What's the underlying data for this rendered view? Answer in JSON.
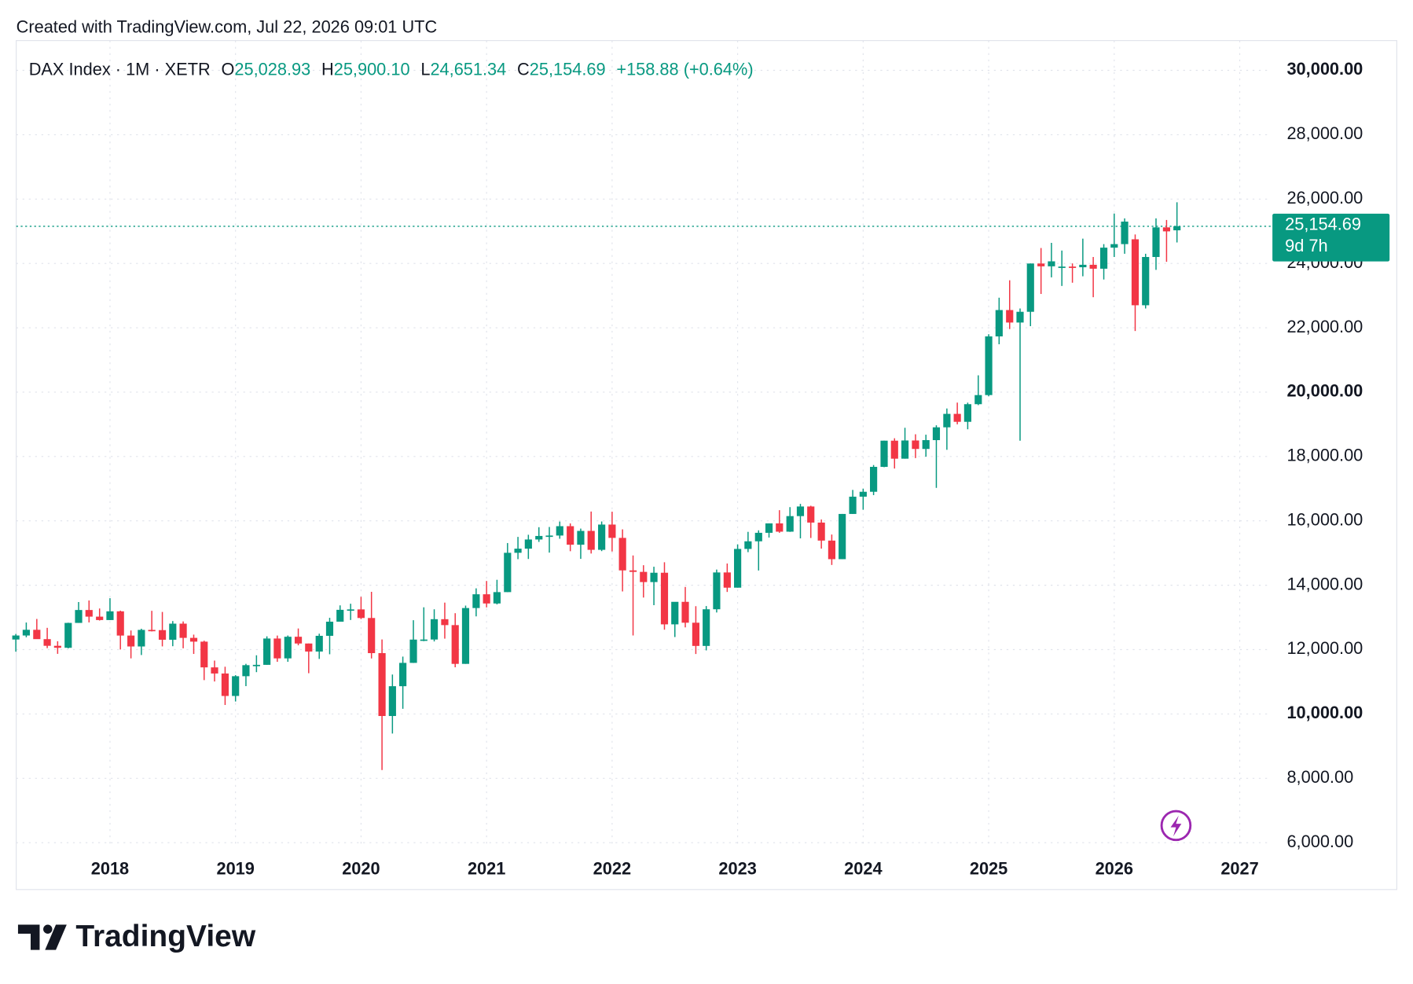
{
  "caption": "Created with TradingView.com, Jul 22, 2026 09:01 UTC",
  "brand": "TradingView",
  "chart_data": {
    "type": "candlestick",
    "legend": {
      "symbol": "DAX Index · 1M · XETR",
      "items": [
        {
          "label": "O",
          "value": "25,028.93"
        },
        {
          "label": "H",
          "value": "25,900.10"
        },
        {
          "label": "L",
          "value": "24,651.34"
        },
        {
          "label": "C",
          "value": "25,154.69"
        }
      ],
      "change": "+158.88 (+0.64%)"
    },
    "price_label": "25,154.69",
    "countdown": "9d 7h",
    "up_color": "#089981",
    "down_color": "#f23645",
    "grid": true,
    "xlim": [
      2017.253,
      2027.246
    ],
    "xticks": [
      2018,
      2019,
      2020,
      2021,
      2022,
      2023,
      2024,
      2025,
      2026,
      2027
    ],
    "ylim": [
      5860,
      30925
    ],
    "yticks": [
      {
        "value": 6000,
        "label": "6,000.00"
      },
      {
        "value": 8000,
        "label": "8,000.00"
      },
      {
        "value": 10000,
        "label": "10,000.00"
      },
      {
        "value": 12000,
        "label": "12,000.00"
      },
      {
        "value": 14000,
        "label": "14,000.00"
      },
      {
        "value": 16000,
        "label": "16,000.00"
      },
      {
        "value": 18000,
        "label": "18,000.00"
      },
      {
        "value": 20000,
        "label": "20,000.00"
      },
      {
        "value": 22000,
        "label": "22,000.00"
      },
      {
        "value": 24000,
        "label": "24,000.00"
      },
      {
        "value": 26000,
        "label": "26,000.00"
      },
      {
        "value": 28000,
        "label": "28,000.00"
      },
      {
        "value": 30000,
        "label": "30,000.00"
      }
    ],
    "x": [
      2017.25,
      2017.333,
      2017.417,
      2017.5,
      2017.583,
      2017.667,
      2017.75,
      2017.833,
      2017.917,
      2018.0,
      2018.083,
      2018.167,
      2018.25,
      2018.333,
      2018.417,
      2018.5,
      2018.583,
      2018.667,
      2018.75,
      2018.833,
      2018.917,
      2019.0,
      2019.083,
      2019.167,
      2019.25,
      2019.333,
      2019.417,
      2019.5,
      2019.583,
      2019.667,
      2019.75,
      2019.833,
      2019.917,
      2020.0,
      2020.083,
      2020.167,
      2020.25,
      2020.333,
      2020.417,
      2020.5,
      2020.583,
      2020.667,
      2020.75,
      2020.833,
      2020.917,
      2021.0,
      2021.083,
      2021.167,
      2021.25,
      2021.333,
      2021.417,
      2021.5,
      2021.583,
      2021.667,
      2021.75,
      2021.833,
      2021.917,
      2022.0,
      2022.083,
      2022.167,
      2022.25,
      2022.333,
      2022.417,
      2022.5,
      2022.583,
      2022.667,
      2022.75,
      2022.833,
      2022.917,
      2023.0,
      2023.083,
      2023.167,
      2023.25,
      2023.333,
      2023.417,
      2023.5,
      2023.583,
      2023.667,
      2023.75,
      2023.833,
      2023.917,
      2024.0,
      2024.083,
      2024.167,
      2024.25,
      2024.333,
      2024.417,
      2024.5,
      2024.583,
      2024.667,
      2024.75,
      2024.833,
      2024.917,
      2025.0,
      2025.083,
      2025.167,
      2025.25,
      2025.333,
      2025.417,
      2025.5,
      2025.583,
      2025.667,
      2025.75,
      2025.833,
      2025.917,
      2026.0,
      2026.083,
      2026.167,
      2026.25,
      2026.333,
      2026.417,
      2026.5
    ],
    "open": [
      12313,
      12438,
      12615,
      12325,
      12118,
      12056,
      12829,
      13230,
      13024,
      12918,
      13189,
      12436,
      12097,
      12612,
      12605,
      12306,
      12806,
      12364,
      12247,
      11447,
      11257,
      10559,
      11173,
      11516,
      11526,
      12344,
      11727,
      12399,
      12189,
      11939,
      12428,
      12867,
      13236,
      13249,
      12982,
      11890,
      9936,
      10862,
      11587,
      12311,
      12313,
      12945,
      12761,
      11556,
      13291,
      13719,
      13433,
      13786,
      15008,
      15136,
      15421,
      15531,
      15544,
      15835,
      15260,
      15688,
      15100,
      15885,
      15471,
      14461,
      14415,
      14098,
      14388,
      12784,
      13484,
      12835,
      12114,
      13253,
      14397,
      13924,
      15128,
      15365,
      15629,
      15922,
      15664,
      16148,
      16447,
      15947,
      15387,
      14810,
      16215,
      16752,
      16904,
      17678,
      18492,
      17932,
      18498,
      18235,
      18509,
      18907,
      19325,
      19078,
      19626,
      19909,
      21732,
      22551,
      22163,
      22497,
      23997,
      23910,
      23900,
      23902,
      23881,
      23958,
      23836,
      24490,
      24600,
      24750,
      22700,
      24200,
      25120,
      25028.93
    ],
    "high": [
      12486,
      12841,
      12952,
      12676,
      12260,
      12835,
      13478,
      13526,
      13277,
      13597,
      13210,
      12594,
      12648,
      13205,
      13170,
      12887,
      12875,
      12465,
      12276,
      11658,
      11467,
      11205,
      11557,
      11823,
      12412,
      12436,
      12438,
      12656,
      12189,
      12494,
      12988,
      13374,
      13425,
      13640,
      13795,
      12314,
      11225,
      11782,
      12913,
      13314,
      13252,
      13460,
      13131,
      13367,
      13903,
      14132,
      14169,
      15311,
      15502,
      15568,
      15803,
      15810,
      15979,
      15921,
      15760,
      16290,
      15981,
      16285,
      15736,
      14925,
      14622,
      14575,
      14714,
      13387,
      13947,
      13349,
      13353,
      14487,
      14675,
      15270,
      15659,
      15706,
      15922,
      16332,
      16427,
      16528,
      16470,
      16043,
      15575,
      16215,
      16962,
      17001,
      17735,
      18492,
      18567,
      18893,
      18691,
      18678,
      18970,
      19492,
      19675,
      19674,
      20523,
      21800,
      22935,
      23476,
      22600,
      24000,
      24479,
      24639,
      24400,
      24000,
      24770,
      24200,
      24600,
      25550,
      25400,
      24900,
      24300,
      25400,
      25350,
      25900.1
    ],
    "low": [
      11935,
      12382,
      12332,
      12045,
      11868,
      12038,
      12829,
      12844,
      12903,
      12918,
      12003,
      11727,
      11831,
      12564,
      12099,
      12105,
      12040,
      11865,
      11051,
      11009,
      10279,
      10387,
      10864,
      11299,
      11526,
      11620,
      11620,
      12133,
      11266,
      11710,
      11855,
      12867,
      12920,
      12948,
      11724,
      8256,
      9391,
      10160,
      11584,
      12261,
      12253,
      12340,
      11450,
      11556,
      13032,
      13311,
      13403,
      13786,
      14810,
      14816,
      15346,
      15014,
      15445,
      15057,
      14819,
      14985,
      15060,
      15049,
      13807,
      12439,
      13617,
      13380,
      12618,
      12390,
      12690,
      11863,
      11976,
      13153,
      13791,
      13924,
      15028,
      14458,
      15482,
      15629,
      15657,
      15456,
      15468,
      15138,
      14630,
      14810,
      16215,
      16345,
      16800,
      17668,
      17626,
      17932,
      17951,
      17994,
      17025,
      18208,
      19000,
      18846,
      19597,
      19870,
      21488,
      21961,
      18490,
      22050,
      23051,
      23567,
      23300,
      23400,
      23600,
      22950,
      23500,
      24200,
      24300,
      21900,
      22600,
      23800,
      24050,
      24651.34
    ],
    "close": [
      12438,
      12615,
      12325,
      12118,
      12056,
      12829,
      13230,
      13024,
      12918,
      13189,
      12436,
      12097,
      12612,
      12605,
      12306,
      12806,
      12364,
      12247,
      11447,
      11257,
      10559,
      11173,
      11516,
      11526,
      12344,
      11727,
      12399,
      12189,
      11939,
      12428,
      12867,
      13236,
      13249,
      12982,
      11890,
      9936,
      10862,
      11587,
      12311,
      12313,
      12945,
      12761,
      11556,
      13291,
      13719,
      13433,
      13786,
      15008,
      15136,
      15421,
      15531,
      15544,
      15835,
      15260,
      15688,
      15100,
      15885,
      15471,
      14461,
      14415,
      14098,
      14388,
      12784,
      13484,
      12835,
      12114,
      13253,
      14397,
      13924,
      15128,
      15365,
      15629,
      15922,
      15664,
      16148,
      16447,
      15947,
      15387,
      14810,
      16215,
      16752,
      16904,
      17678,
      18492,
      17932,
      18498,
      18235,
      18509,
      18907,
      19325,
      19078,
      19626,
      19909,
      21732,
      22551,
      22163,
      22497,
      23997,
      23910,
      24065,
      23902,
      23881,
      23958,
      23836,
      24490,
      24600,
      25300,
      22700,
      24200,
      25120,
      24996,
      25154.69
    ]
  }
}
